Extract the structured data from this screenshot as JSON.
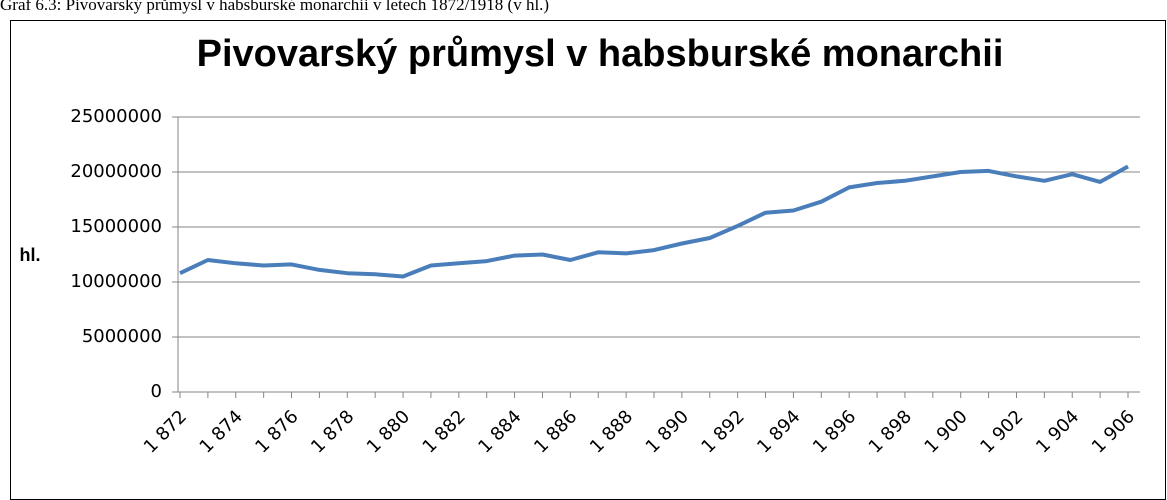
{
  "caption": "Graf 6.3: Pivovarský průmysl v habsburské monarchii v letech 1872/1918 (v hl.)",
  "chart_data": {
    "type": "line",
    "title": "Pivovarský průmysl v habsburské monarchii",
    "y_label": "hl.",
    "categories": [
      "1 872",
      null,
      "1 874",
      null,
      "1 876",
      null,
      "1 878",
      null,
      "1 880",
      null,
      "1 882",
      null,
      "1 884",
      null,
      "1 886",
      null,
      "1 888",
      null,
      "1 890",
      null,
      "1 892",
      null,
      "1 894",
      null,
      "1 896",
      null,
      "1 898",
      null,
      "1 900",
      null,
      "1 902",
      null,
      "1 904",
      null,
      "1 906"
    ],
    "series": [
      {
        "name": "hl.",
        "color": "#4a7ebb",
        "values": [
          10800000,
          12000000,
          11700000,
          11500000,
          11600000,
          11100000,
          10800000,
          10700000,
          10500000,
          11500000,
          11700000,
          11900000,
          12400000,
          12500000,
          12000000,
          12700000,
          12600000,
          12900000,
          13500000,
          14000000,
          15100000,
          16300000,
          16500000,
          17300000,
          18600000,
          19000000,
          19200000,
          19600000,
          20000000,
          20100000,
          19600000,
          19200000,
          19800000,
          19100000,
          20500000
        ]
      }
    ],
    "ylim": [
      0,
      25000000
    ],
    "yticks": [
      0,
      5000000,
      10000000,
      15000000,
      20000000,
      25000000
    ],
    "grid": true
  }
}
